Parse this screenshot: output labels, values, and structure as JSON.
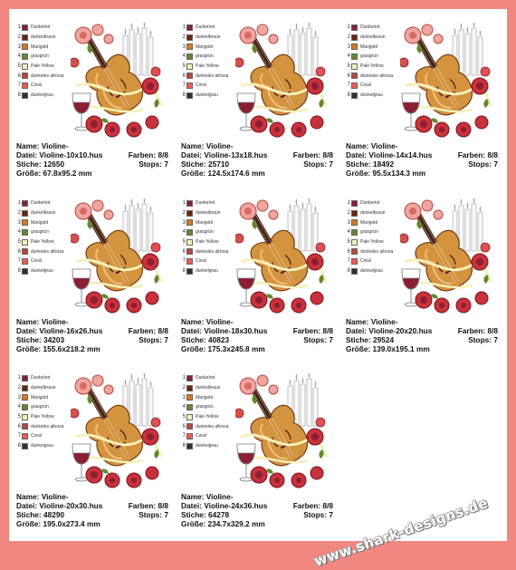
{
  "colors": {
    "background": "#f08880",
    "panel": "#ffffff"
  },
  "color_palette": [
    {
      "num": "1",
      "name": "Dunkelrot",
      "color": "#8b1e32"
    },
    {
      "num": "2",
      "name": "dunkelbraun",
      "color": "#6b2410"
    },
    {
      "num": "3",
      "name": "Marigold",
      "color": "#d9781e"
    },
    {
      "num": "4",
      "name": "grasgrün",
      "color": "#5e8a2a"
    },
    {
      "num": "5",
      "name": "Pale Yellow",
      "color": "#f4f0b8"
    },
    {
      "num": "6",
      "name": "dunkeles altrosa",
      "color": "#b8443c"
    },
    {
      "num": "7",
      "name": "Coral",
      "color": "#f05a50"
    },
    {
      "num": "8",
      "name": "dunkelgrau",
      "color": "#303030"
    }
  ],
  "labels": {
    "name": "Name:",
    "file": "Datei:",
    "stitches": "Stiche:",
    "size": "Größe:",
    "colors": "Farben:",
    "stops": "Stops:"
  },
  "designs": [
    {
      "name": "Violine-",
      "file": "Violine-10x10.hus",
      "stitches": "12650",
      "size": "67.8x95.2 mm",
      "colors": "8/8",
      "stops": "7"
    },
    {
      "name": "Violine-",
      "file": "Violine-13x18.hus",
      "stitches": "25710",
      "size": "124.5x174.6 mm",
      "colors": "8/8",
      "stops": "7"
    },
    {
      "name": "Violine-",
      "file": "Violine-14x14.hus",
      "stitches": "18492",
      "size": "95.5x134.3 mm",
      "colors": "8/8",
      "stops": "7"
    },
    {
      "name": "Violine-",
      "file": "Violine-16x26.hus",
      "stitches": "34203",
      "size": "155.6x218.2 mm",
      "colors": "8/8",
      "stops": "7"
    },
    {
      "name": "Violine-",
      "file": "Violine-18x30.hus",
      "stitches": "40823",
      "size": "175.3x245.8 mm",
      "colors": "8/8",
      "stops": "7"
    },
    {
      "name": "Violine-",
      "file": "Violine-20x20.hus",
      "stitches": "29524",
      "size": "139.0x195.1 mm",
      "colors": "8/8",
      "stops": "7"
    },
    {
      "name": "Violine-",
      "file": "Violine-20x30.hus",
      "stitches": "48290",
      "size": "195.0x273.4 mm",
      "colors": "8/8",
      "stops": "7"
    },
    {
      "name": "Violine-",
      "file": "Violine-24x36.hus",
      "stitches": "64278",
      "size": "234.7x329.2 mm",
      "colors": "8/8",
      "stops": "7"
    }
  ],
  "watermark": "www.shark-designs.de"
}
